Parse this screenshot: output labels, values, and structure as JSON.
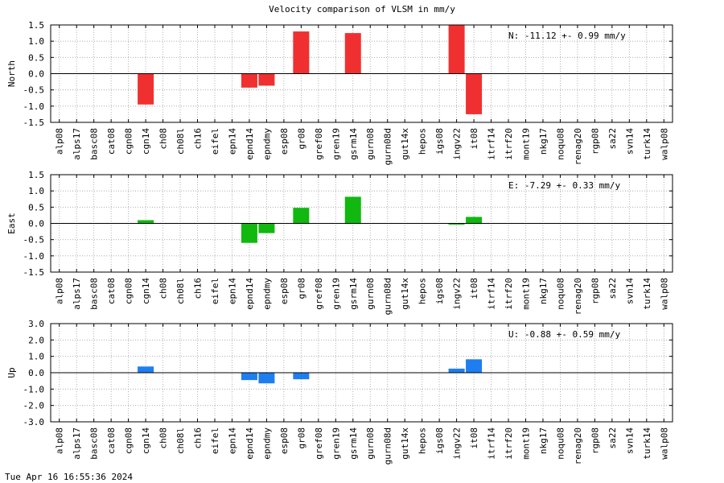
{
  "title": "Velocity comparison of VLSM in mm/y",
  "footer": "Tue Apr 16 16:55:36 2024",
  "chart_data": [
    {
      "type": "bar",
      "ylabel": "North",
      "color": "#f03030",
      "annotation": "N: -11.12 +-  0.99 mm/y",
      "ylim": [
        -1.5,
        1.5
      ],
      "yticks": [
        1.5,
        1.0,
        0.5,
        0.0,
        -0.5,
        -1.0,
        -1.5
      ],
      "ytick_labels": [
        "1.5",
        "1.0",
        "0.5",
        "0.0",
        "-0.5",
        "-1.0",
        "-1.5"
      ],
      "grid": true,
      "categories": [
        "alp08",
        "alps17",
        "basc08",
        "cat08",
        "cgn08",
        "cgn14",
        "ch08",
        "ch08l",
        "ch16",
        "eifel",
        "epn14",
        "epnd14",
        "epndmy",
        "esp08",
        "gr08",
        "gref08",
        "gren19",
        "gsrm14",
        "gurn08",
        "gurn08d",
        "gut14x",
        "hepos",
        "igs08",
        "ingv22",
        "it08",
        "itrf14",
        "itrf20",
        "mont19",
        "nkg17",
        "noqu08",
        "renag20",
        "rgp08",
        "sa22",
        "svn14",
        "turk14",
        "walp08"
      ],
      "values": [
        0,
        0,
        0,
        0,
        0,
        -0.95,
        0,
        0,
        0,
        0,
        0,
        -0.43,
        -0.37,
        0,
        1.3,
        0,
        0,
        1.25,
        0,
        0,
        0,
        0,
        0,
        1.5,
        -1.25,
        0,
        0,
        0,
        0,
        0,
        0,
        0,
        0,
        0,
        0,
        0
      ]
    },
    {
      "type": "bar",
      "ylabel": "East",
      "color": "#10b810",
      "annotation": "E:  -7.29 +-  0.33 mm/y",
      "ylim": [
        -1.5,
        1.5
      ],
      "yticks": [
        1.5,
        1.0,
        0.5,
        0.0,
        -0.5,
        -1.0,
        -1.5
      ],
      "ytick_labels": [
        "1.5",
        "1.0",
        "0.5",
        "0.0",
        "-0.5",
        "-1.0",
        "-1.5"
      ],
      "grid": true,
      "categories": [
        "alp08",
        "alps17",
        "basc08",
        "cat08",
        "cgn08",
        "cgn14",
        "ch08",
        "ch08l",
        "ch16",
        "eifel",
        "epn14",
        "epnd14",
        "epndmy",
        "esp08",
        "gr08",
        "gref08",
        "gren19",
        "gsrm14",
        "gurn08",
        "gurn08d",
        "gut14x",
        "hepos",
        "igs08",
        "ingv22",
        "it08",
        "itrf14",
        "itrf20",
        "mont19",
        "nkg17",
        "noqu08",
        "renag20",
        "rgp08",
        "sa22",
        "svn14",
        "turk14",
        "walp08"
      ],
      "values": [
        0,
        0,
        0,
        0,
        0,
        0.1,
        0,
        0,
        0,
        0,
        0,
        -0.6,
        -0.3,
        0,
        0.48,
        0,
        0,
        0.82,
        0,
        0,
        0,
        0,
        0,
        -0.04,
        0.2,
        0,
        0,
        0,
        0,
        0,
        0,
        0,
        0,
        0,
        0,
        0
      ]
    },
    {
      "type": "bar",
      "ylabel": "Up",
      "color": "#1e7ef0",
      "annotation": "U:  -0.88 +-  0.59 mm/y",
      "ylim": [
        -3.0,
        3.0
      ],
      "yticks": [
        3.0,
        2.0,
        1.0,
        0.0,
        -1.0,
        -2.0,
        -3.0
      ],
      "ytick_labels": [
        "3.0",
        "2.0",
        "1.0",
        "0.0",
        "-1.0",
        "-2.0",
        "-3.0"
      ],
      "grid": true,
      "categories": [
        "alp08",
        "alps17",
        "basc08",
        "cat08",
        "cgn08",
        "cgn14",
        "ch08",
        "ch08l",
        "ch16",
        "eifel",
        "epn14",
        "epnd14",
        "epndmy",
        "esp08",
        "gr08",
        "gref08",
        "gren19",
        "gsrm14",
        "gurn08",
        "gurn08d",
        "gut14x",
        "hepos",
        "igs08",
        "ingv22",
        "it08",
        "itrf14",
        "itrf20",
        "mont19",
        "nkg17",
        "noqu08",
        "renag20",
        "rgp08",
        "sa22",
        "svn14",
        "turk14",
        "walp08"
      ],
      "values": [
        0,
        0,
        0,
        0,
        0,
        0.38,
        0,
        0,
        0,
        0,
        0,
        -0.45,
        -0.65,
        0,
        -0.4,
        0,
        0,
        0,
        0,
        0,
        0,
        0,
        0,
        0.25,
        0.82,
        0,
        0,
        0,
        0,
        0,
        0,
        0,
        0,
        0,
        0,
        0
      ]
    }
  ]
}
